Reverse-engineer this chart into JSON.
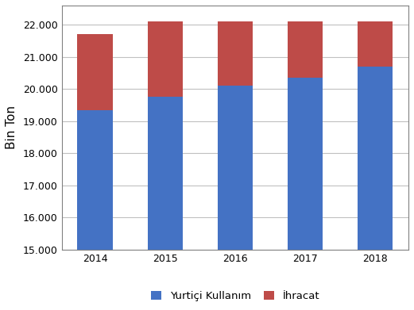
{
  "years": [
    "2014",
    "2015",
    "2016",
    "2017",
    "2018"
  ],
  "yurtici": [
    19350,
    19750,
    20100,
    20350,
    20700
  ],
  "ihracat": [
    2350,
    2350,
    2000,
    1750,
    1400
  ],
  "bar_color_yurtici": "#4472C4",
  "bar_color_ihracat": "#BE4B48",
  "ylabel": "Bin Ton",
  "ybase": 15000,
  "ylim_min": 15000,
  "ylim_max": 22600,
  "yticks": [
    15000,
    16000,
    17000,
    18000,
    19000,
    20000,
    21000,
    22000
  ],
  "legend_labels": [
    "Yurtiçi Kullanım",
    "İhracat"
  ],
  "background_color": "#FFFFFF",
  "plot_bg_color": "#FFFFFF",
  "grid_color": "#C0C0C0",
  "bar_width": 0.5,
  "tick_fontsize": 9,
  "ylabel_fontsize": 11
}
